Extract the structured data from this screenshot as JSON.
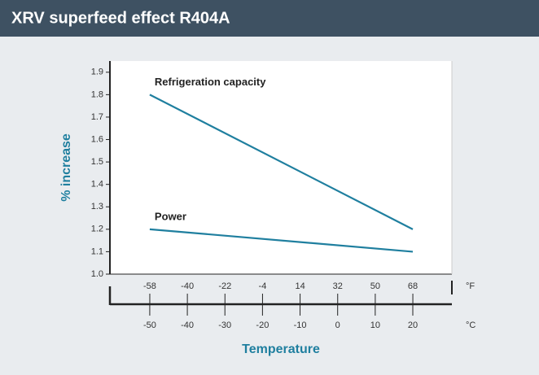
{
  "chart_data": {
    "type": "line",
    "title": "XRV superfeed effect R404A",
    "xlabel": "Temperature",
    "ylabel": "% increase",
    "x_unit": "°C",
    "x2_unit": "°F",
    "x": [
      -50,
      20
    ],
    "series": [
      {
        "name": "Refrigeration capacity",
        "color": "#1f7f9f",
        "values": [
          1.8,
          1.2
        ]
      },
      {
        "name": "Power",
        "color": "#1f7f9f",
        "values": [
          1.2,
          1.1
        ]
      }
    ],
    "xlim": [
      -60.6,
      30.4
    ],
    "xticks": [
      -50,
      -40,
      -30,
      -20,
      -10,
      0,
      10,
      20
    ],
    "x2lim": [
      -77.1,
      86.7
    ],
    "x2ticks": [
      -58,
      -40,
      -22,
      -4,
      14,
      32,
      50,
      68
    ],
    "ylim": [
      1.0,
      1.95
    ],
    "yticks": [
      {
        "value": 1.0,
        "label": "1.0"
      },
      1.1,
      1.2,
      1.3,
      1.4,
      1.5,
      1.6,
      1.7,
      1.8,
      1.9
    ]
  }
}
